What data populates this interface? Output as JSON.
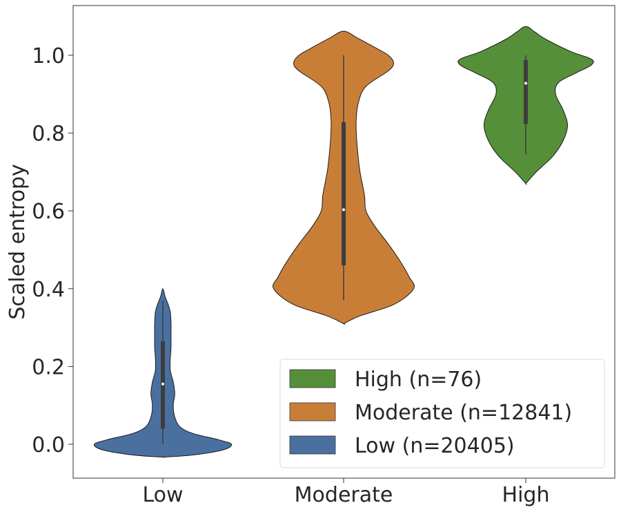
{
  "chart_data": {
    "type": "violin",
    "title": "",
    "xlabel": "",
    "ylabel": "Scaled entropy",
    "categories": [
      "Low",
      "Moderate",
      "High"
    ],
    "ylim": [
      -0.088,
      1.124
    ],
    "yticks": [
      "0.0",
      "0.2",
      "0.4",
      "0.6",
      "0.8",
      "1.0"
    ],
    "yticks_values": [
      0.0,
      0.2,
      0.4,
      0.6,
      0.8,
      1.0
    ],
    "grid": false,
    "legend_position": "lower-right",
    "legend": [
      {
        "label": "High (n=76)",
        "color": "#568f3a"
      },
      {
        "label": "Moderate (n=12841)",
        "color": "#c97e38"
      },
      {
        "label": "Low (n=20405)",
        "color": "#4a70a0"
      }
    ],
    "series": [
      {
        "category": "Low",
        "color": "#4a70a0",
        "min": 0.0,
        "q1": 0.04,
        "median": 0.155,
        "q3": 0.265,
        "max": 0.37,
        "profile": [
          [
            -0.033,
            0.0
          ],
          [
            -0.028,
            0.38
          ],
          [
            -0.015,
            0.8
          ],
          [
            0.0,
            0.92
          ],
          [
            0.012,
            0.74
          ],
          [
            0.028,
            0.4
          ],
          [
            0.045,
            0.23
          ],
          [
            0.07,
            0.16
          ],
          [
            0.1,
            0.14
          ],
          [
            0.13,
            0.16
          ],
          [
            0.16,
            0.14
          ],
          [
            0.19,
            0.1
          ],
          [
            0.22,
            0.1
          ],
          [
            0.25,
            0.11
          ],
          [
            0.28,
            0.11
          ],
          [
            0.31,
            0.11
          ],
          [
            0.34,
            0.1
          ],
          [
            0.36,
            0.07
          ],
          [
            0.38,
            0.03
          ],
          [
            0.4,
            0.0
          ]
        ]
      },
      {
        "category": "Moderate",
        "color": "#c97e38",
        "min": 0.37,
        "q1": 0.46,
        "median": 0.603,
        "q3": 0.828,
        "max": 1.0,
        "profile": [
          [
            0.31,
            0.0
          ],
          [
            0.33,
            0.22
          ],
          [
            0.36,
            0.68
          ],
          [
            0.4,
            0.94
          ],
          [
            0.43,
            0.88
          ],
          [
            0.47,
            0.76
          ],
          [
            0.52,
            0.58
          ],
          [
            0.56,
            0.42
          ],
          [
            0.6,
            0.3
          ],
          [
            0.64,
            0.28
          ],
          [
            0.7,
            0.22
          ],
          [
            0.75,
            0.19
          ],
          [
            0.8,
            0.17
          ],
          [
            0.84,
            0.17
          ],
          [
            0.88,
            0.2
          ],
          [
            0.92,
            0.3
          ],
          [
            0.96,
            0.6
          ],
          [
            0.98,
            0.67
          ],
          [
            1.0,
            0.6
          ],
          [
            1.02,
            0.42
          ],
          [
            1.045,
            0.18
          ],
          [
            1.062,
            0.0
          ]
        ]
      },
      {
        "category": "High",
        "color": "#568f3a",
        "min": 0.745,
        "q1": 0.823,
        "median": 0.928,
        "q3": 0.988,
        "max": 1.0,
        "profile": [
          [
            0.67,
            0.0
          ],
          [
            0.7,
            0.14
          ],
          [
            0.74,
            0.36
          ],
          [
            0.78,
            0.5
          ],
          [
            0.82,
            0.56
          ],
          [
            0.86,
            0.5
          ],
          [
            0.9,
            0.4
          ],
          [
            0.93,
            0.44
          ],
          [
            0.955,
            0.68
          ],
          [
            0.975,
            0.88
          ],
          [
            0.99,
            0.88
          ],
          [
            1.01,
            0.6
          ],
          [
            1.04,
            0.28
          ],
          [
            1.06,
            0.12
          ],
          [
            1.074,
            0.0
          ]
        ]
      }
    ]
  }
}
